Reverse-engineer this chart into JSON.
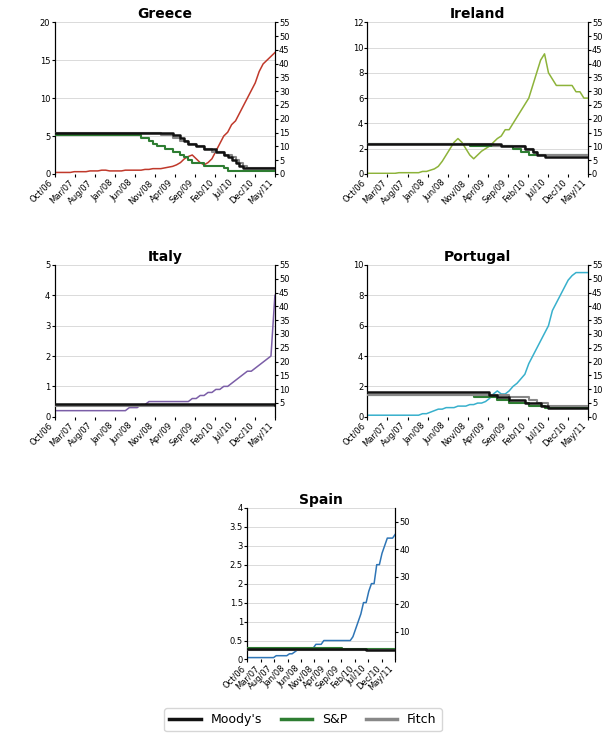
{
  "title_fontsize": 10,
  "tick_fontsize": 7,
  "background_color": "#ffffff",
  "grid_color": "#cccccc",
  "colors": {
    "spread": {
      "Greece": "#c0392b",
      "Ireland": "#8db33a",
      "Italy": "#7b5ea7",
      "Portugal": "#38b0cc",
      "Spain": "#2e75b6"
    },
    "moodys": "#111111",
    "sp": "#2e7d32",
    "fitch": "#888888"
  },
  "x_labels": [
    "Oct/06",
    "Mar/07",
    "Aug/07",
    "Jan/08",
    "Jun/08",
    "Nov/08",
    "Apr/09",
    "Sep/09",
    "Feb/10",
    "Jul/10",
    "Dec/10",
    "May/11"
  ],
  "n_points": 57,
  "rating": {
    "Greece": {
      "moodys": [
        15,
        15,
        15,
        15,
        15,
        15,
        15,
        15,
        15,
        15,
        15,
        15,
        15,
        15,
        15,
        15,
        15,
        15,
        15,
        15,
        15,
        15,
        15,
        15,
        15,
        15,
        15,
        15,
        15,
        15,
        14,
        14,
        13,
        12,
        11,
        11,
        10,
        10,
        9,
        9,
        9,
        8,
        8,
        7,
        6,
        5,
        4,
        3,
        2,
        2,
        2,
        2,
        2,
        2,
        2,
        2,
        2
      ],
      "sp": [
        14,
        14,
        14,
        14,
        14,
        14,
        14,
        14,
        14,
        14,
        14,
        14,
        14,
        14,
        14,
        14,
        14,
        14,
        14,
        14,
        14,
        14,
        13,
        13,
        12,
        11,
        10,
        10,
        9,
        9,
        8,
        8,
        7,
        6,
        5,
        4,
        4,
        4,
        3,
        3,
        3,
        3,
        3,
        2,
        1,
        1,
        1,
        1,
        1,
        1,
        1,
        1,
        1,
        1,
        1,
        1,
        1
      ],
      "fitch": [
        15,
        15,
        15,
        15,
        15,
        15,
        15,
        15,
        15,
        15,
        15,
        15,
        15,
        15,
        15,
        15,
        15,
        15,
        15,
        15,
        15,
        15,
        15,
        15,
        15,
        15,
        15,
        14,
        14,
        14,
        13,
        13,
        12,
        12,
        11,
        11,
        10,
        10,
        9,
        9,
        8,
        8,
        8,
        7,
        7,
        6,
        5,
        4,
        3,
        2,
        2,
        2,
        2,
        2,
        2,
        2,
        2
      ]
    },
    "Ireland": {
      "moodys": [
        11,
        11,
        11,
        11,
        11,
        11,
        11,
        11,
        11,
        11,
        11,
        11,
        11,
        11,
        11,
        11,
        11,
        11,
        11,
        11,
        11,
        11,
        11,
        11,
        11,
        11,
        11,
        11,
        11,
        11,
        11,
        11,
        11,
        11,
        10,
        10,
        10,
        10,
        10,
        10,
        9,
        9,
        8,
        7,
        7,
        6,
        6,
        6,
        6,
        6,
        6,
        6,
        6,
        6,
        6,
        6,
        6
      ],
      "sp": [
        11,
        11,
        11,
        11,
        11,
        11,
        11,
        11,
        11,
        11,
        11,
        11,
        11,
        11,
        11,
        11,
        11,
        11,
        11,
        11,
        11,
        11,
        11,
        11,
        11,
        11,
        10,
        10,
        10,
        10,
        10,
        10,
        10,
        10,
        10,
        10,
        10,
        9,
        9,
        8,
        8,
        7,
        7,
        7,
        7,
        7,
        7,
        7,
        7,
        7,
        7,
        7,
        7,
        7,
        7,
        7,
        7
      ],
      "fitch": [
        11,
        11,
        11,
        11,
        11,
        11,
        11,
        11,
        11,
        11,
        11,
        11,
        11,
        11,
        11,
        11,
        11,
        11,
        11,
        11,
        11,
        11,
        11,
        11,
        11,
        11,
        11,
        11,
        11,
        11,
        11,
        11,
        10,
        10,
        10,
        10,
        10,
        10,
        10,
        10,
        9,
        9,
        8,
        7,
        7,
        7,
        7,
        7,
        7,
        7,
        7,
        7,
        7,
        7,
        7,
        7,
        7
      ]
    },
    "Italy": {
      "moodys": [
        4.5,
        4.5,
        4.5,
        4.5,
        4.5,
        4.5,
        4.5,
        4.5,
        4.5,
        4.5,
        4.5,
        4.5,
        4.5,
        4.5,
        4.5,
        4.5,
        4.5,
        4.5,
        4.5,
        4.5,
        4.5,
        4.5,
        4.5,
        4.5,
        4.5,
        4.5,
        4.5,
        4.5,
        4.5,
        4.5,
        4.5,
        4.5,
        4.5,
        4.5,
        4.5,
        4.5,
        4.5,
        4.5,
        4.5,
        4.5,
        4.5,
        4.5,
        4.5,
        4.5,
        4.5,
        4.5,
        4.5,
        4.5,
        4.5,
        4.5,
        4.5,
        4.5,
        4.5,
        4.5,
        4.5,
        4.5,
        4.2
      ],
      "sp": [
        4.2,
        4.2,
        4.2,
        4.2,
        4.2,
        4.2,
        4.2,
        4.2,
        4.2,
        4.2,
        4.2,
        4.2,
        4.2,
        4.2,
        4.2,
        4.2,
        4.2,
        4.2,
        4.2,
        4.2,
        4.2,
        4.2,
        4.2,
        4.2,
        4.2,
        4.2,
        4.2,
        4.2,
        4.2,
        4.2,
        4.2,
        4.2,
        4.2,
        4.2,
        4.2,
        4.2,
        4.2,
        4.2,
        4.2,
        4.2,
        4.2,
        4.2,
        4.2,
        4.2,
        4.2,
        4.2,
        4.2,
        4.2,
        4.2,
        4.2,
        4.2,
        4.2,
        4.2,
        4.2,
        4.2,
        4.2,
        4.2
      ],
      "fitch": [
        4.0,
        4.0,
        4.0,
        4.0,
        4.0,
        4.0,
        4.0,
        4.0,
        4.0,
        4.0,
        4.0,
        4.0,
        4.0,
        4.0,
        4.0,
        4.0,
        4.0,
        4.0,
        4.0,
        4.0,
        4.0,
        4.0,
        4.0,
        4.0,
        4.0,
        4.0,
        4.0,
        4.0,
        4.0,
        4.0,
        4.0,
        4.0,
        4.0,
        4.0,
        4.0,
        4.0,
        4.0,
        4.0,
        4.0,
        4.0,
        4.0,
        4.0,
        4.0,
        4.0,
        4.0,
        4.0,
        4.0,
        4.0,
        4.0,
        4.0,
        4.0,
        4.0,
        4.0,
        3.8,
        3.8,
        3.8,
        3.8
      ]
    },
    "Portugal": {
      "moodys": [
        9,
        9,
        9,
        9,
        9,
        9,
        9,
        9,
        9,
        9,
        9,
        9,
        9,
        9,
        9,
        9,
        9,
        9,
        9,
        9,
        9,
        9,
        9,
        9,
        9,
        9,
        9,
        9,
        9,
        9,
        9,
        8,
        8,
        7,
        7,
        7,
        6,
        6,
        6,
        6,
        5,
        5,
        5,
        5,
        4,
        4,
        3,
        3,
        3,
        3,
        3,
        3,
        3,
        3,
        3,
        3,
        3
      ],
      "sp": [
        8,
        8,
        8,
        8,
        8,
        8,
        8,
        8,
        8,
        8,
        8,
        8,
        8,
        8,
        8,
        8,
        8,
        8,
        8,
        8,
        8,
        8,
        8,
        8,
        8,
        8,
        8,
        7,
        7,
        7,
        7,
        7,
        7,
        6,
        6,
        6,
        5,
        5,
        5,
        5,
        5,
        4,
        4,
        4,
        4,
        3,
        3,
        3,
        3,
        3,
        3,
        3,
        3,
        3,
        3,
        3,
        3
      ],
      "fitch": [
        8,
        8,
        8,
        8,
        8,
        8,
        8,
        8,
        8,
        8,
        8,
        8,
        8,
        8,
        8,
        8,
        8,
        8,
        8,
        8,
        8,
        8,
        8,
        8,
        8,
        8,
        8,
        8,
        8,
        8,
        8,
        8,
        8,
        8,
        8,
        8,
        7,
        7,
        7,
        7,
        7,
        6,
        6,
        5,
        5,
        5,
        4,
        4,
        4,
        4,
        4,
        4,
        4,
        4,
        4,
        4,
        4
      ]
    },
    "Spain": {
      "moodys": [
        3.8,
        3.8,
        3.8,
        3.8,
        3.8,
        3.8,
        3.8,
        3.8,
        3.8,
        3.8,
        3.8,
        3.8,
        3.8,
        3.8,
        3.8,
        3.8,
        3.8,
        3.8,
        3.8,
        3.8,
        3.8,
        3.8,
        3.8,
        3.8,
        3.8,
        3.8,
        3.8,
        3.8,
        3.8,
        3.8,
        3.8,
        3.8,
        3.8,
        3.8,
        3.8,
        3.8,
        3.8,
        3.8,
        3.8,
        3.8,
        3.8,
        3.8,
        3.8,
        3.8,
        3.8,
        3.5,
        3.5,
        3.5,
        3.5,
        3.5,
        3.5,
        3.5,
        3.5,
        3.5,
        3.5,
        3.5,
        3.5
      ],
      "sp": [
        4.0,
        4.0,
        4.0,
        4.0,
        4.0,
        4.0,
        4.0,
        4.0,
        4.0,
        4.0,
        4.0,
        4.0,
        4.0,
        4.0,
        4.0,
        4.0,
        4.0,
        4.0,
        4.0,
        4.0,
        4.0,
        4.0,
        4.0,
        4.0,
        4.0,
        4.0,
        4.0,
        4.0,
        4.0,
        4.0,
        4.0,
        4.0,
        4.0,
        4.0,
        4.0,
        4.0,
        3.7,
        3.7,
        3.7,
        3.7,
        3.7,
        3.7,
        3.7,
        3.7,
        3.7,
        3.7,
        3.7,
        3.7,
        3.7,
        3.7,
        3.7,
        3.7,
        3.7,
        3.7,
        3.7,
        3.7,
        3.7
      ],
      "fitch": [
        3.5,
        3.5,
        3.5,
        3.5,
        3.5,
        3.5,
        3.5,
        3.5,
        3.5,
        3.5,
        3.5,
        3.5,
        3.5,
        3.5,
        3.5,
        3.5,
        3.5,
        3.5,
        3.5,
        3.5,
        3.5,
        3.5,
        3.5,
        3.5,
        3.5,
        3.5,
        3.5,
        3.5,
        3.5,
        3.5,
        3.5,
        3.5,
        3.5,
        3.5,
        3.5,
        3.5,
        3.5,
        3.5,
        3.5,
        3.5,
        3.5,
        3.5,
        3.5,
        3.5,
        3.5,
        3.5,
        3.5,
        3.5,
        3.5,
        3.5,
        3.5,
        3.5,
        3.5,
        3.5,
        3.5,
        3.5,
        3.5
      ]
    }
  },
  "spread": {
    "Greece": [
      0.2,
      0.2,
      0.2,
      0.2,
      0.2,
      0.3,
      0.3,
      0.3,
      0.3,
      0.4,
      0.4,
      0.4,
      0.5,
      0.5,
      0.4,
      0.4,
      0.4,
      0.4,
      0.5,
      0.5,
      0.5,
      0.5,
      0.5,
      0.6,
      0.6,
      0.7,
      0.7,
      0.7,
      0.8,
      0.9,
      1.0,
      1.2,
      1.5,
      2.0,
      2.3,
      2.5,
      2.0,
      1.5,
      1.2,
      1.5,
      2.0,
      3.0,
      4.0,
      5.0,
      5.5,
      6.5,
      7.0,
      8.0,
      9.0,
      10.0,
      11.0,
      12.0,
      13.5,
      14.5,
      15.0,
      15.5,
      16.0
    ],
    "Ireland": [
      0.05,
      0.05,
      0.05,
      0.05,
      0.05,
      0.05,
      0.05,
      0.05,
      0.1,
      0.1,
      0.1,
      0.1,
      0.1,
      0.1,
      0.2,
      0.2,
      0.3,
      0.4,
      0.6,
      1.0,
      1.5,
      2.0,
      2.5,
      2.8,
      2.5,
      2.0,
      1.5,
      1.2,
      1.5,
      1.8,
      2.0,
      2.2,
      2.5,
      2.8,
      3.0,
      3.5,
      3.5,
      4.0,
      4.5,
      5.0,
      5.5,
      6.0,
      7.0,
      8.0,
      9.0,
      9.5,
      8.0,
      7.5,
      7.0,
      7.0,
      7.0,
      7.0,
      7.0,
      6.5,
      6.5,
      6.0,
      6.0
    ],
    "Italy": [
      0.2,
      0.2,
      0.2,
      0.2,
      0.2,
      0.2,
      0.2,
      0.2,
      0.2,
      0.2,
      0.2,
      0.2,
      0.2,
      0.2,
      0.2,
      0.2,
      0.2,
      0.2,
      0.2,
      0.3,
      0.3,
      0.3,
      0.4,
      0.4,
      0.5,
      0.5,
      0.5,
      0.5,
      0.5,
      0.5,
      0.5,
      0.5,
      0.5,
      0.5,
      0.5,
      0.6,
      0.6,
      0.7,
      0.7,
      0.8,
      0.8,
      0.9,
      0.9,
      1.0,
      1.0,
      1.1,
      1.2,
      1.3,
      1.4,
      1.5,
      1.5,
      1.6,
      1.7,
      1.8,
      1.9,
      2.0,
      4.0
    ],
    "Portugal": [
      0.1,
      0.1,
      0.1,
      0.1,
      0.1,
      0.1,
      0.1,
      0.1,
      0.1,
      0.1,
      0.1,
      0.1,
      0.1,
      0.1,
      0.2,
      0.2,
      0.3,
      0.4,
      0.5,
      0.5,
      0.6,
      0.6,
      0.6,
      0.7,
      0.7,
      0.7,
      0.8,
      0.8,
      0.9,
      0.9,
      1.0,
      1.2,
      1.5,
      1.7,
      1.5,
      1.5,
      1.7,
      2.0,
      2.2,
      2.5,
      2.8,
      3.5,
      4.0,
      4.5,
      5.0,
      5.5,
      6.0,
      7.0,
      7.5,
      8.0,
      8.5,
      9.0,
      9.3,
      9.5,
      9.5,
      9.5,
      9.5
    ],
    "Spain": [
      0.05,
      0.05,
      0.05,
      0.05,
      0.05,
      0.05,
      0.05,
      0.05,
      0.05,
      0.05,
      0.05,
      0.1,
      0.1,
      0.1,
      0.1,
      0.1,
      0.15,
      0.15,
      0.2,
      0.25,
      0.3,
      0.3,
      0.3,
      0.3,
      0.3,
      0.3,
      0.4,
      0.4,
      0.4,
      0.5,
      0.5,
      0.5,
      0.5,
      0.5,
      0.5,
      0.5,
      0.5,
      0.5,
      0.5,
      0.5,
      0.6,
      0.8,
      1.0,
      1.2,
      1.5,
      1.5,
      1.8,
      2.0,
      2.0,
      2.5,
      2.5,
      2.8,
      3.0,
      3.2,
      3.2,
      3.2,
      3.3
    ]
  },
  "ylim_left": {
    "Greece": [
      0,
      20
    ],
    "Ireland": [
      0,
      12
    ],
    "Italy": [
      0,
      5
    ],
    "Portugal": [
      0,
      10
    ],
    "Spain": [
      0,
      4
    ]
  },
  "yticks_left": {
    "Greece": [
      0,
      5,
      10,
      15,
      20
    ],
    "Ireland": [
      0,
      2,
      4,
      6,
      8,
      10,
      12
    ],
    "Italy": [
      0,
      1,
      2,
      3,
      4,
      5
    ],
    "Portugal": [
      0,
      2,
      4,
      6,
      8,
      10
    ],
    "Spain": [
      0,
      0.5,
      1,
      1.5,
      2,
      2.5,
      3,
      3.5,
      4
    ]
  },
  "ylim_right": {
    "Greece": [
      0,
      55
    ],
    "Ireland": [
      0,
      55
    ],
    "Italy": [
      0,
      55
    ],
    "Portugal": [
      0,
      55
    ],
    "Spain": [
      0,
      55
    ]
  },
  "yticks_right": {
    "Greece": [
      0,
      5,
      10,
      15,
      20,
      25,
      30,
      35,
      40,
      45,
      50,
      55
    ],
    "Ireland": [
      0,
      5,
      10,
      15,
      20,
      25,
      30,
      35,
      40,
      45,
      50,
      55
    ],
    "Italy": [
      5,
      10,
      15,
      20,
      25,
      30,
      35,
      40,
      45,
      50,
      55
    ],
    "Portugal": [
      0,
      5,
      10,
      15,
      20,
      25,
      30,
      35,
      40,
      45,
      50,
      55
    ],
    "Spain": [
      10,
      20,
      30,
      40,
      50
    ]
  },
  "rating_scale": {
    "Greece": 3.667,
    "Ireland": 3.667,
    "Italy": 3.667,
    "Portugal": 3.667,
    "Spain": 3.667
  }
}
